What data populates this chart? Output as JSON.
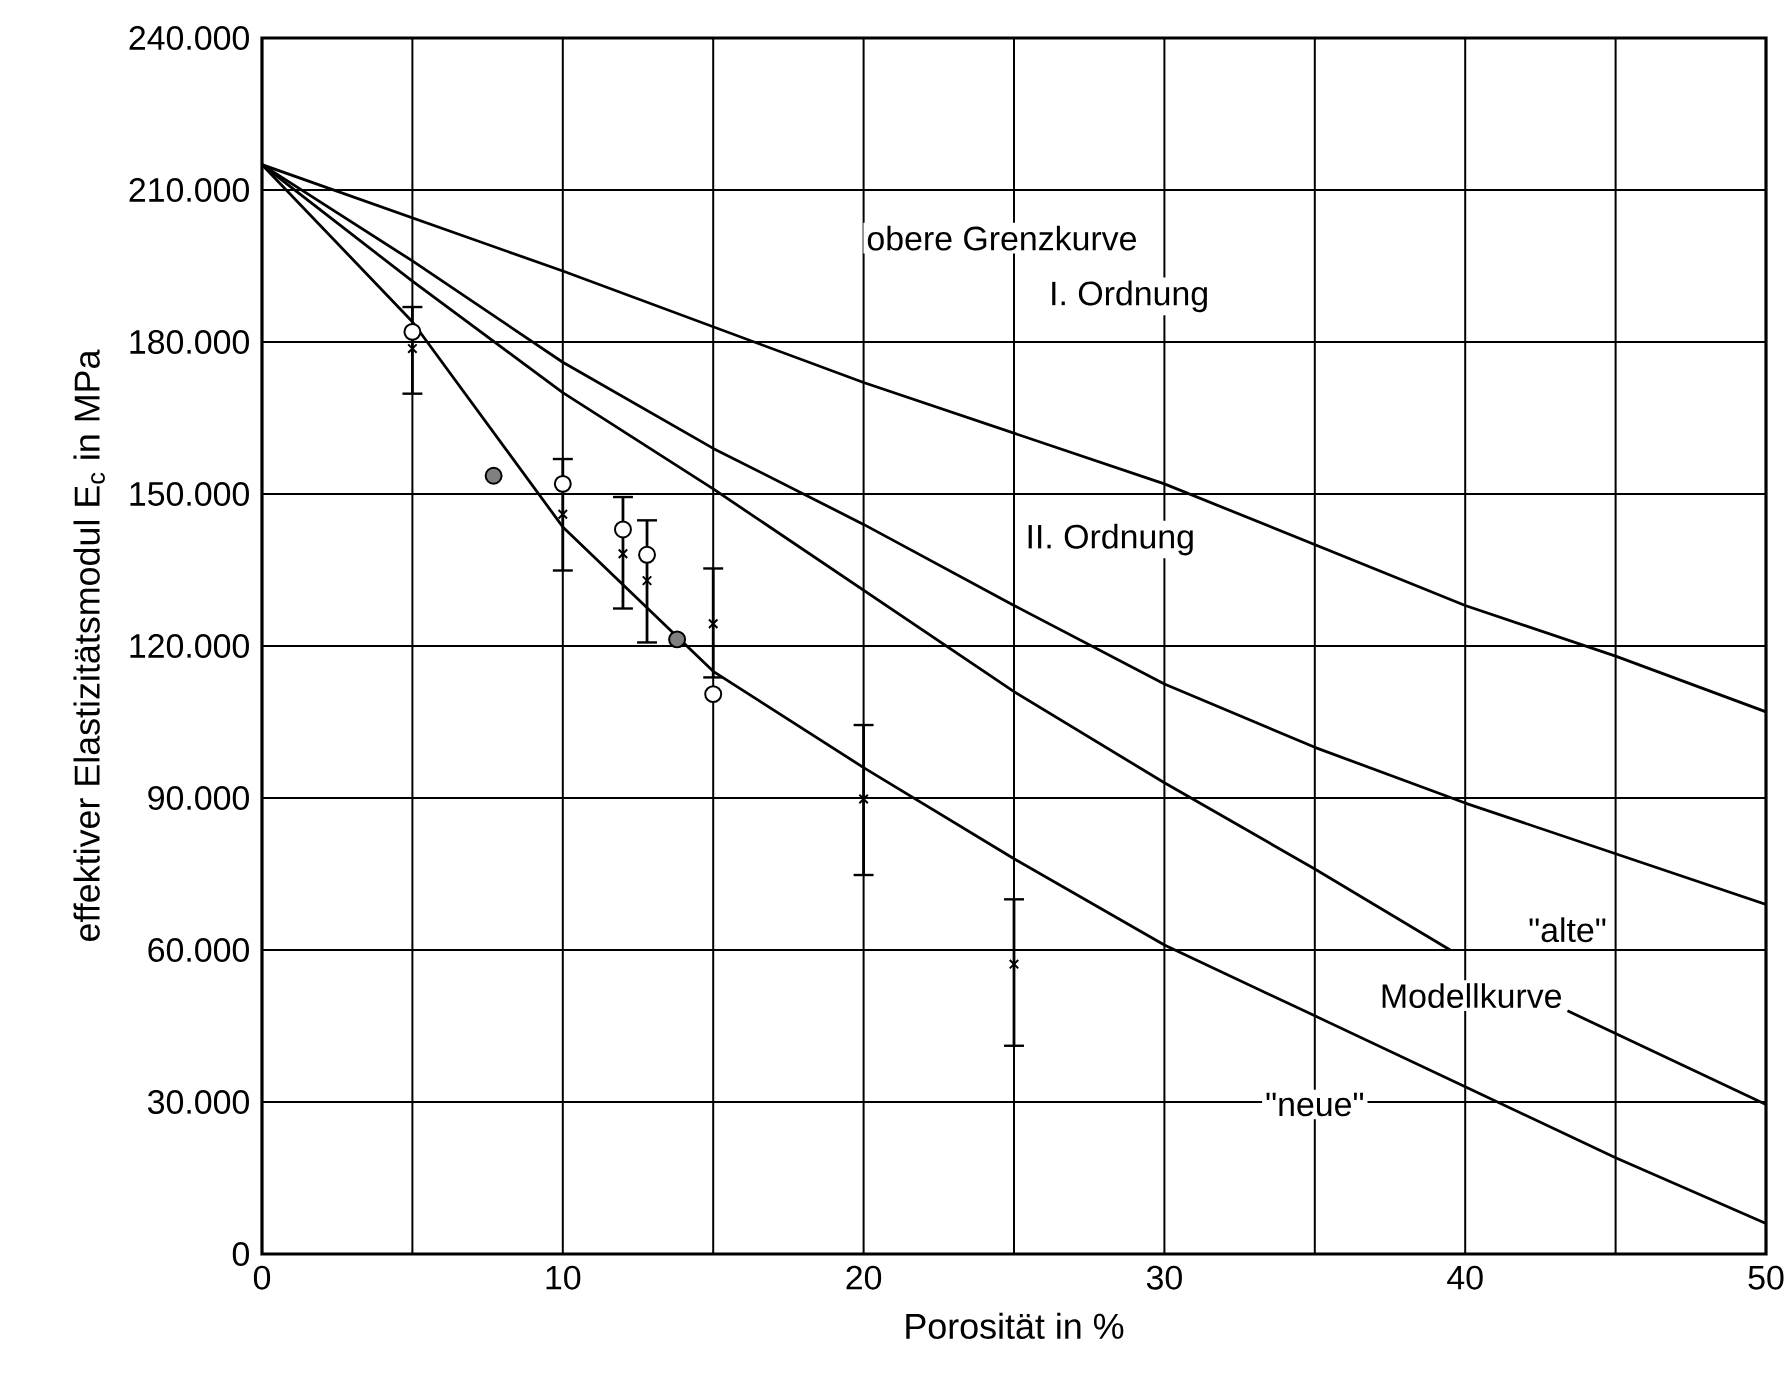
{
  "chart_data": {
    "type": "line",
    "xlabel": "Porosität in %",
    "ylabel": "effektiver Elastizitätsmodul E$_{c}$ in MPa",
    "xlim": [
      0,
      50
    ],
    "ylim": [
      0,
      240000
    ],
    "xticks": [
      0,
      {
        "value": 5,
        "label": null
      },
      10,
      {
        "value": 15,
        "label": null
      },
      20,
      {
        "value": 25,
        "label": null
      },
      30,
      {
        "value": 35,
        "label": null
      },
      40,
      {
        "value": 45,
        "label": null
      },
      50
    ],
    "yticks": [
      0,
      {
        "value": 30000,
        "label": "30.000"
      },
      {
        "value": 60000,
        "label": "60.000"
      },
      {
        "value": 90000,
        "label": "90.000"
      },
      {
        "value": 120000,
        "label": "120.000"
      },
      {
        "value": 150000,
        "label": "150.000"
      },
      {
        "value": 180000,
        "label": "180.000"
      },
      {
        "value": 210000,
        "label": "210.000"
      },
      {
        "value": 240000,
        "label": "240.000"
      }
    ],
    "grid": true,
    "series": [
      {
        "color": "#000000",
        "marker": "none",
        "x": [
          0,
          10,
          15,
          20,
          30,
          40,
          45,
          50
        ],
        "values": [
          215000,
          194000,
          183000,
          172000,
          152000,
          128000,
          118000,
          107000
        ]
      },
      {
        "color": "#000000",
        "marker": "none",
        "x": [
          0,
          5,
          10,
          15,
          20,
          25,
          30,
          35,
          40,
          45,
          50
        ],
        "values": [
          215000,
          196000,
          176000,
          159000,
          144000,
          128000,
          112500,
          100000,
          89000,
          79000,
          69000
        ]
      },
      {
        "color": "#000000",
        "marker": "none",
        "x": [
          0,
          5,
          10,
          15,
          20,
          25,
          30,
          35,
          39.5,
          41.5,
          43.4,
          50
        ],
        "values": [
          215000,
          192000,
          170000,
          151000,
          131000,
          111000,
          93000,
          76000,
          60000,
          null,
          48000,
          29500
        ]
      },
      {
        "color": "#000000",
        "marker": "none",
        "x": [
          0,
          5,
          10,
          15,
          20,
          25,
          30,
          35,
          40,
          45,
          50
        ],
        "values": [
          215000,
          184000,
          143500,
          115000,
          96000,
          78000,
          61000,
          47000,
          33000,
          19000,
          6000
        ]
      },
      {
        "type": "scatter",
        "color": "#000000",
        "marker": "cross",
        "x": [
          5,
          10,
          12,
          12.8,
          15,
          20,
          25
        ],
        "values": [
          178700,
          146000,
          138200,
          132900,
          124400,
          89800,
          57200
        ],
        "errors": [
          [
            169800,
            186900
          ],
          [
            134900,
            156900
          ],
          [
            127400,
            149400
          ],
          [
            120700,
            144800
          ],
          [
            113800,
            135300
          ],
          [
            74800,
            104400
          ],
          [
            41100,
            70000
          ]
        ]
      },
      {
        "type": "scatter",
        "color": "#ffffff",
        "marker": "circle",
        "x": [
          5,
          10,
          12,
          12.8,
          15
        ],
        "values": [
          182000,
          152000,
          143000,
          138000,
          110500
        ]
      },
      {
        "type": "scatter",
        "color": "#808080",
        "marker": "circle",
        "x": [
          7.7,
          13.8
        ],
        "values": [
          153600,
          121300
        ]
      }
    ],
    "annotations": [
      "obere Grenzkurve",
      "I. Ordnung",
      "II. Ordnung",
      "\"alte\"",
      "Modellkurve",
      "\"neue\""
    ]
  }
}
